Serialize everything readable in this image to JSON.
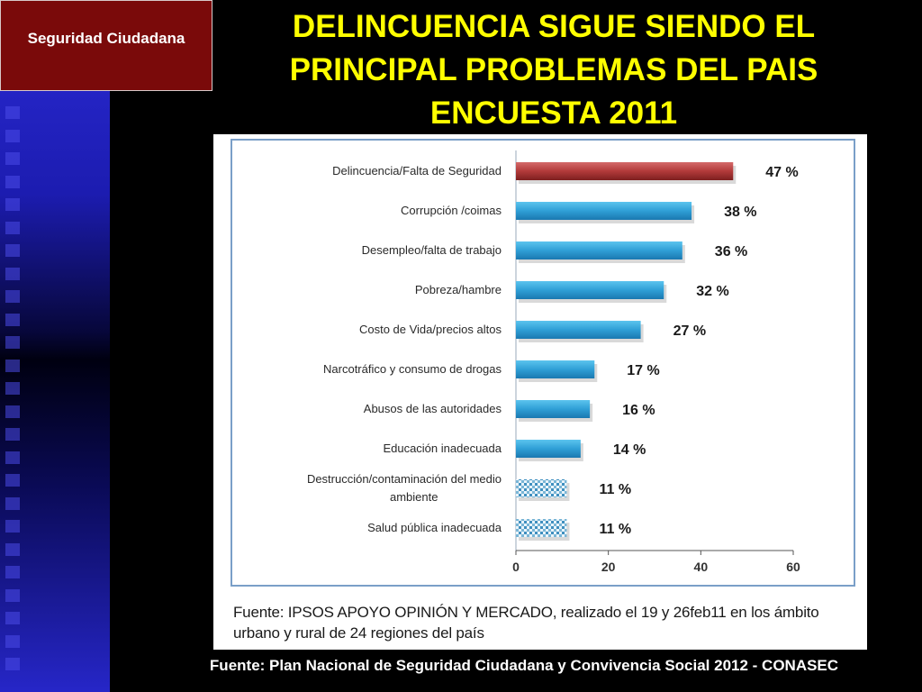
{
  "section_tag": "Seguridad Ciudadana",
  "title": "DELINCUENCIA SIGUE SIENDO EL PRINCIPAL PROBLEMAS DEL PAIS ENCUESTA 2011",
  "chart_source": "Fuente: IPSOS APOYO OPINIÓN Y MERCADO, realizado el 19 y 26feb11 en los ámbito urbano y rural de 24 regiones del país",
  "footer": "Fuente: Plan Nacional de Seguridad Ciudadana y Convivencia Social 2012 - CONASEC",
  "colors": {
    "highlight_bar": "#b23a3a",
    "bar": "#2f9fd6",
    "hatched_bar": "#7ab6d6",
    "title": "#ffff00",
    "section_tag": "#7a0a0a"
  },
  "chart_data": {
    "type": "bar",
    "orientation": "horizontal",
    "categories": [
      "Delincuencia/Falta de Seguridad",
      "Corrupción /coimas",
      "Desempleo/falta de trabajo",
      "Pobreza/hambre",
      "Costo de Vida/precios altos",
      "Narcotráfico y consumo de drogas",
      "Abusos de las autoridades",
      "Educación inadecuada",
      "Destrucción/contaminación del medio ambiente",
      "Salud pública inadecuada"
    ],
    "values": [
      47,
      38,
      36,
      32,
      27,
      17,
      16,
      14,
      11,
      11
    ],
    "data_labels": [
      "47 %",
      "38 %",
      "36 %",
      "32 %",
      "27 %",
      "17 %",
      "16 %",
      "14 %",
      "11 %",
      "11 %"
    ],
    "highlight_index": 0,
    "hatched_indices": [
      8,
      9
    ],
    "xlim": [
      0,
      60
    ],
    "xticks": [
      0,
      20,
      40,
      60
    ],
    "grid": false
  }
}
